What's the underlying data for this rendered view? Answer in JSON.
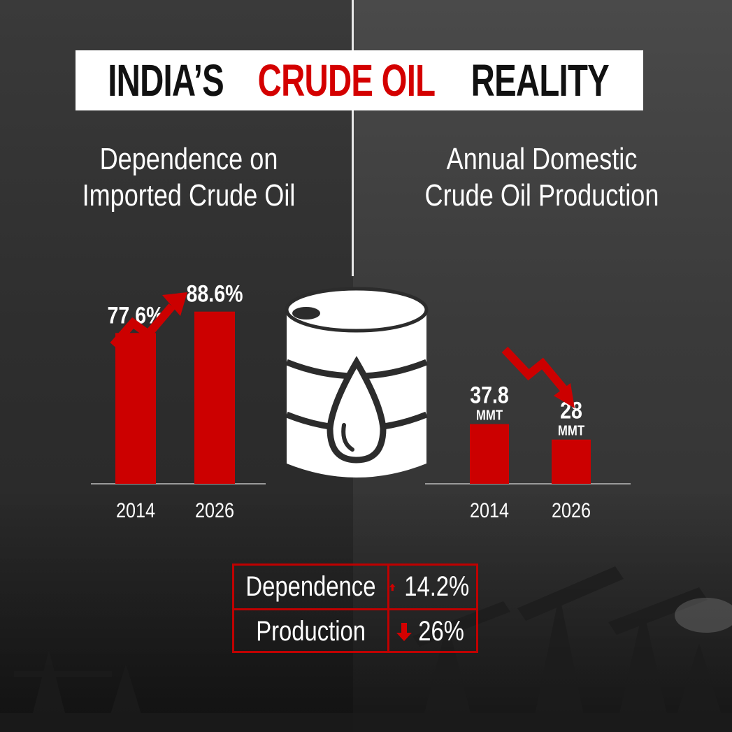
{
  "title": {
    "part1": "INDIA’S",
    "part2": "CRUDE OIL",
    "part3": "REALITY"
  },
  "colors": {
    "accent_red": "#cc0000",
    "white": "#ffffff",
    "background_dark": "#2f2f2f"
  },
  "icons": {
    "barrel": "oil-barrel-icon",
    "drop": "oil-drop-icon"
  },
  "chart_data": [
    {
      "type": "bar",
      "title_line1": "Dependence on",
      "title_line2": "Imported Crude Oil",
      "categories": [
        "2014",
        "2026"
      ],
      "values": [
        77.6,
        88.6
      ],
      "data_labels": [
        "77.6%",
        "88.6%"
      ],
      "units": [],
      "trend": "up"
    },
    {
      "type": "bar",
      "title_line1": "Annual Domestic",
      "title_line2": "Crude Oil Production",
      "categories": [
        "2014",
        "2026"
      ],
      "values": [
        37.8,
        28
      ],
      "data_labels": [
        "37.8",
        "28"
      ],
      "units": [
        "MMT",
        "MMT"
      ],
      "trend": "down"
    }
  ],
  "summary": [
    {
      "label": "Dependence",
      "value": "14.2%",
      "direction": "up"
    },
    {
      "label": "Production",
      "value": "26%",
      "direction": "down"
    }
  ]
}
